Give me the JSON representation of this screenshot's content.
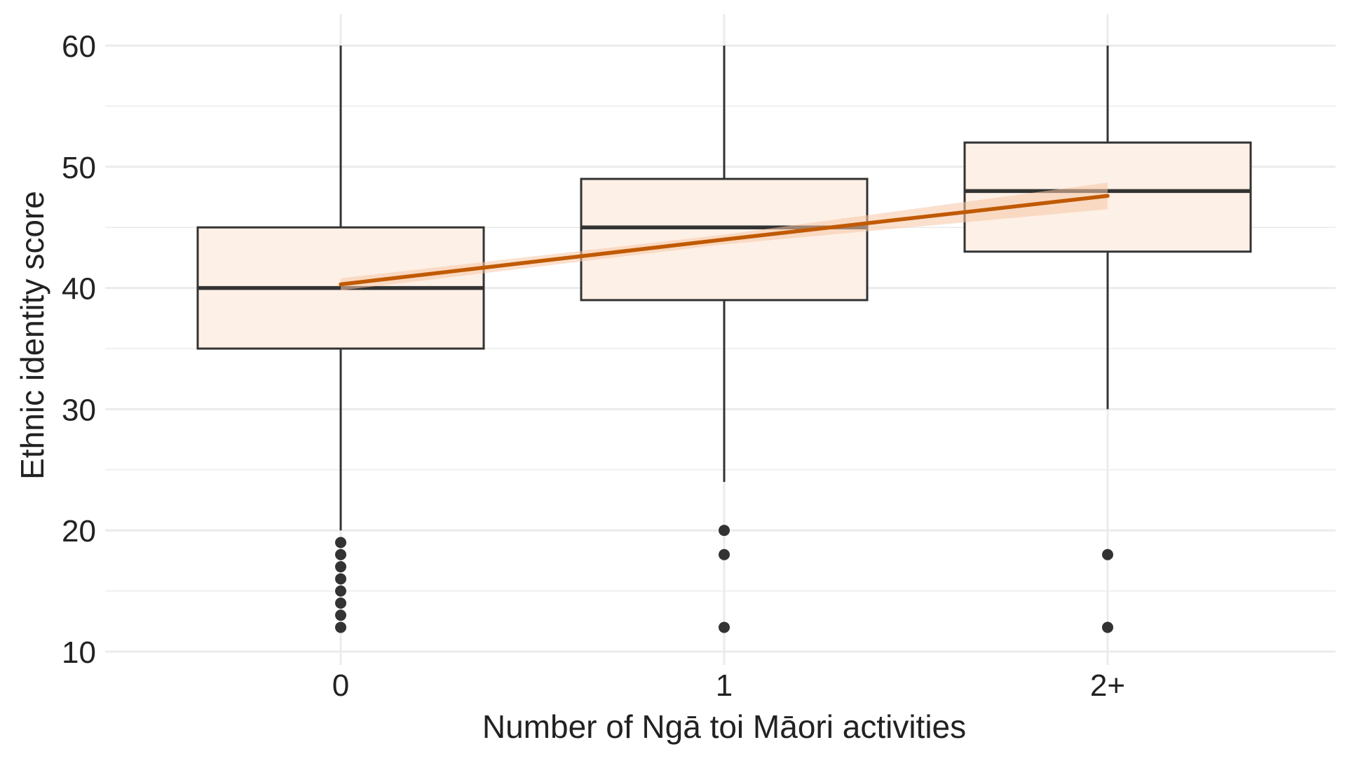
{
  "chart_data": {
    "type": "boxplot",
    "title": "",
    "xlabel": "Number of Ngā toi Māori activities",
    "ylabel": "Ethnic identity score",
    "ylim": [
      10,
      60
    ],
    "y_ticks": [
      10,
      20,
      30,
      40,
      50,
      60
    ],
    "grid": true,
    "legend": "none",
    "categories": [
      "0",
      "1",
      "2+"
    ],
    "boxes": [
      {
        "category": "0",
        "whisker_low": 20,
        "q1": 35,
        "median": 40,
        "q3": 45,
        "whisker_high": 60,
        "outliers": [
          19,
          18,
          17,
          16,
          15,
          14,
          13,
          12
        ]
      },
      {
        "category": "1",
        "whisker_low": 24,
        "q1": 39,
        "median": 45,
        "q3": 49,
        "whisker_high": 60,
        "outliers": [
          20,
          18,
          12
        ]
      },
      {
        "category": "2+",
        "whisker_low": 30,
        "q1": 43,
        "median": 48,
        "q3": 52,
        "whisker_high": 60,
        "outliers": [
          18,
          12
        ]
      }
    ],
    "trend_line": {
      "type": "linear",
      "x": [
        "0",
        "1",
        "2+"
      ],
      "values": [
        40.3,
        44.0,
        47.6
      ],
      "ci_low": [
        39.8,
        43.6,
        46.5
      ],
      "ci_high": [
        40.8,
        44.4,
        48.7
      ]
    },
    "colors": {
      "box_fill": "#fdf0e6",
      "box_stroke": "#333333",
      "trend_line": "#c05a00",
      "trend_band": "#f7c7a6",
      "grid": "#ebebeb",
      "outlier": "#333333"
    }
  }
}
